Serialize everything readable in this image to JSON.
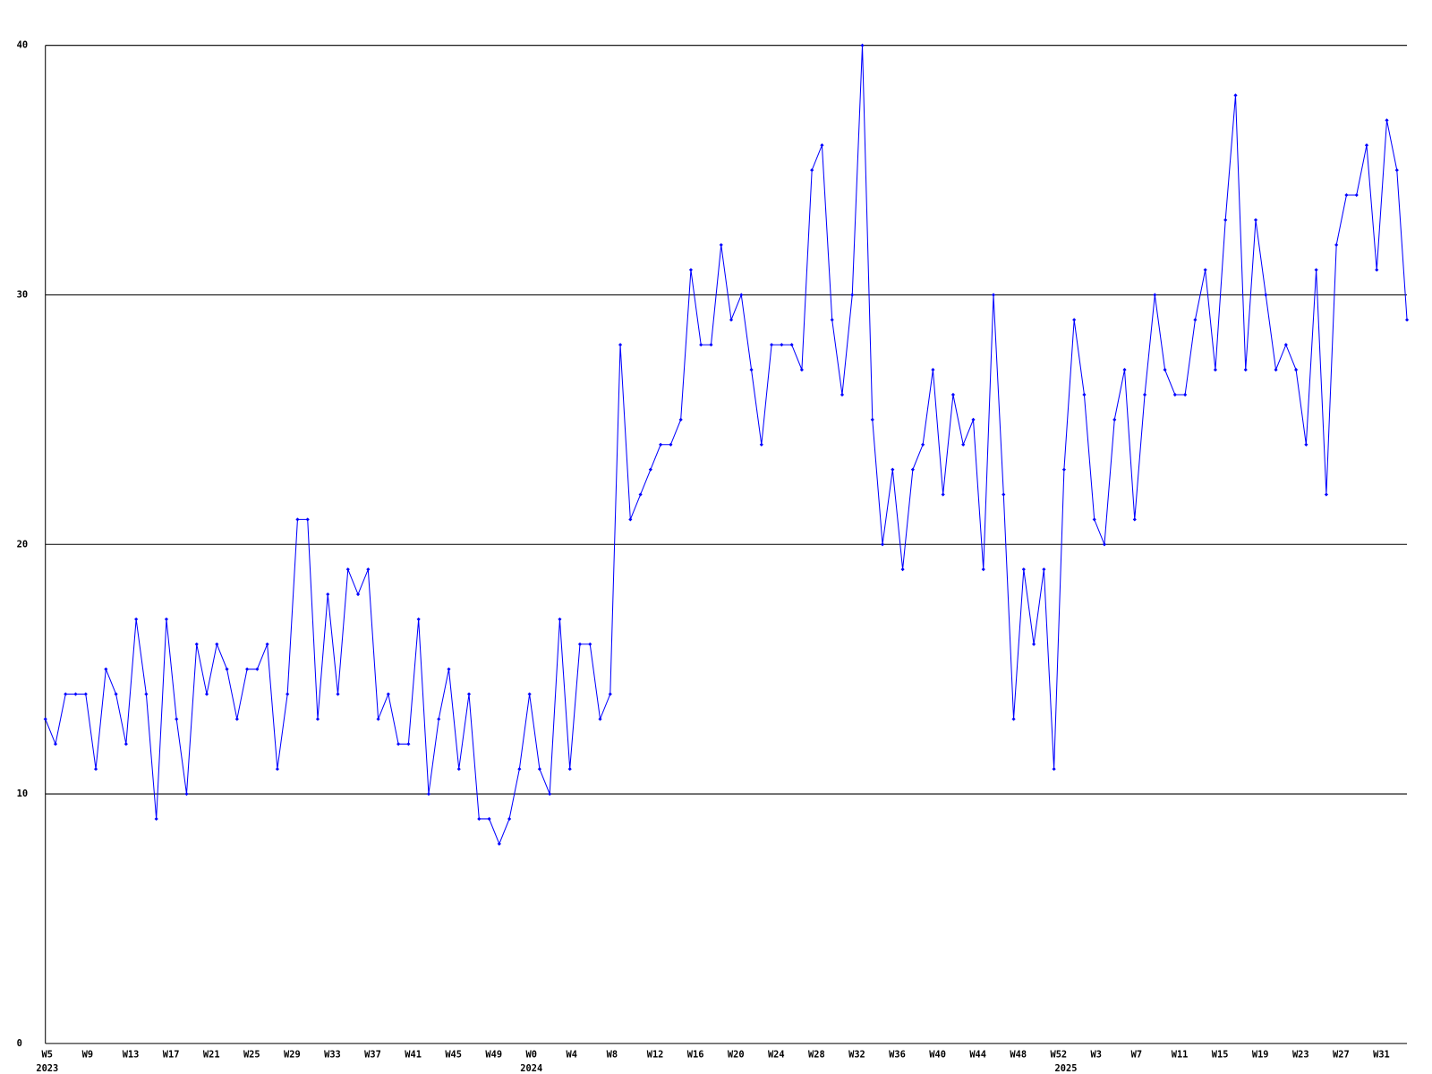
{
  "chart_data": {
    "type": "line",
    "categories": [
      "W5",
      null,
      null,
      null,
      "W9",
      null,
      null,
      null,
      "W13",
      null,
      null,
      null,
      "W17",
      null,
      null,
      null,
      "W21",
      null,
      null,
      null,
      "W25",
      null,
      null,
      null,
      "W29",
      null,
      null,
      null,
      "W33",
      null,
      null,
      null,
      "W37",
      null,
      null,
      null,
      "W41",
      null,
      null,
      null,
      "W45",
      null,
      null,
      null,
      "W49",
      null,
      null,
      null,
      "W0",
      null,
      null,
      null,
      "W4",
      null,
      null,
      null,
      "W8",
      null,
      null,
      null,
      "W12",
      null,
      null,
      null,
      "W16",
      null,
      null,
      null,
      "W20",
      null,
      null,
      null,
      "W24",
      null,
      null,
      null,
      "W28",
      null,
      null,
      null,
      "W32",
      null,
      null,
      null,
      "W36",
      null,
      null,
      null,
      "W40",
      null,
      null,
      null,
      "W44",
      null,
      null,
      null,
      "W48",
      null,
      null,
      null,
      "W52",
      null,
      null,
      null,
      "W3",
      null,
      null,
      null,
      "W7",
      null,
      null,
      null,
      "W11",
      null,
      null,
      null,
      "W15",
      null,
      null,
      null,
      "W19",
      null,
      null,
      null,
      "W23",
      null,
      null,
      null,
      "W27",
      null,
      null,
      null,
      "W31",
      null,
      null,
      null
    ],
    "year_labels": [
      {
        "index": 0,
        "label": "2023"
      },
      {
        "index": 48,
        "label": "2024"
      },
      {
        "index": 101,
        "label": "2025"
      }
    ],
    "series": [
      {
        "color": "#0000ff",
        "values": [
          13,
          12,
          14,
          14,
          14,
          11,
          15,
          14,
          12,
          17,
          14,
          9,
          17,
          13,
          10,
          16,
          14,
          16,
          15,
          13,
          15,
          15,
          16,
          11,
          14,
          21,
          21,
          13,
          18,
          14,
          19,
          18,
          19,
          13,
          14,
          12,
          12,
          17,
          10,
          13,
          15,
          11,
          14,
          9,
          9,
          8,
          9,
          11,
          14,
          11,
          10,
          17,
          11,
          16,
          16,
          13,
          14,
          28,
          21,
          22,
          23,
          24,
          24,
          25,
          31,
          28,
          28,
          32,
          29,
          30,
          27,
          24,
          28,
          28,
          28,
          27,
          35,
          36,
          29,
          26,
          30,
          40,
          25,
          20,
          23,
          19,
          23,
          24,
          27,
          22,
          26,
          24,
          25,
          19,
          30,
          22,
          13,
          19,
          16,
          19,
          11,
          23,
          29,
          26,
          21,
          20,
          25,
          27,
          21,
          26,
          30,
          27,
          26,
          26,
          29,
          31,
          27,
          33,
          38,
          27,
          33,
          30,
          27,
          28,
          27,
          24,
          31,
          22,
          32,
          34,
          34,
          36,
          31,
          37,
          35,
          29
        ]
      }
    ],
    "ylim": [
      0,
      40
    ],
    "yticks": [
      0,
      10,
      20,
      30,
      40
    ],
    "grid": true
  }
}
